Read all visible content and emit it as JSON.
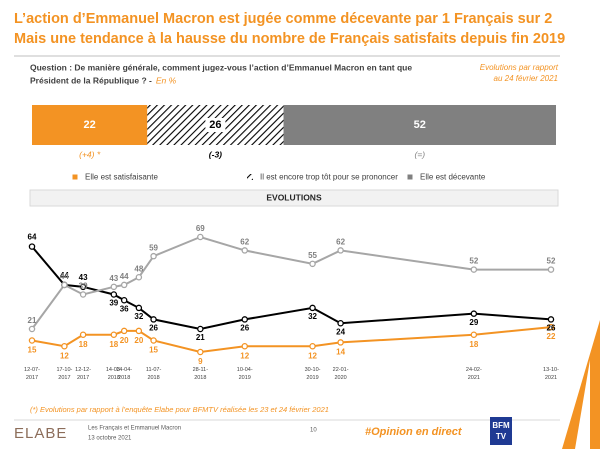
{
  "header": {
    "title": [
      "L’action d’Emmanuel Macron est jugée comme décevante par 1 Français sur 2",
      "Mais une tendance à la hausse du nombre de Français satisfaits depuis fin 2019"
    ]
  },
  "question": {
    "text": [
      "Question : De manière générale, comment jugez-vous l’action d’Emmanuel Macron en tant que",
      "Président de la République ? -"
    ],
    "unit": "En %"
  },
  "note": [
    "Evolutions par rapport",
    "au 24 février 2021"
  ],
  "chart_data": [
    {
      "type": "stacked-bar",
      "series": [
        {
          "name": "Elle est satisfaisante",
          "color": "#f39323",
          "values": [
            22
          ],
          "change": "(+4) *"
        },
        {
          "name": "Il est encore trop tôt pour se prononcer",
          "color": "#000000",
          "pattern": "hatch",
          "values": [
            26
          ],
          "change": "(-3)"
        },
        {
          "name": "Elle est décevante",
          "color": "#808080",
          "values": [
            52
          ],
          "change": "(=)"
        }
      ]
    },
    {
      "type": "line",
      "title": "EVOLUTIONS",
      "categories": [
        "12-07-2017",
        "17-10-2017",
        "12-12-2017",
        "14-03-2018",
        "14-04-2018",
        null,
        "11-07-2018",
        "28-11-2018",
        "10-04-2019",
        "30-10-2019",
        "22-01-2020",
        "24-02-2021",
        "13-10-2021"
      ],
      "series": [
        {
          "name": "Elle est satisfaisante",
          "color": "#f39323",
          "values": [
            15,
            12,
            18,
            18,
            20,
            20,
            15,
            9,
            12,
            12,
            14,
            18,
            22
          ]
        },
        {
          "name": "Il est encore trop tôt pour se prononcer",
          "color": "#000000",
          "values": [
            64,
            44,
            43,
            39,
            36,
            32,
            26,
            21,
            26,
            32,
            24,
            29,
            26
          ]
        },
        {
          "name": "Elle est décevante",
          "color": "#a6a6a6",
          "values": [
            21,
            44,
            39,
            43,
            44,
            48,
            59,
            69,
            62,
            55,
            62,
            52,
            52
          ]
        }
      ]
    }
  ],
  "footer": {
    "footnote": "(*) Evolutions par rapport à l’enquête Elabe pour BFMTV réalisée les 23 et 24 février 2021",
    "brand": "ELABE",
    "study": "Les Français et Emmanuel Macron",
    "date": "13 octobre 2021",
    "page": "10",
    "hashtag": "#Opinion en direct",
    "partner": [
      "BFM",
      "TV"
    ]
  }
}
